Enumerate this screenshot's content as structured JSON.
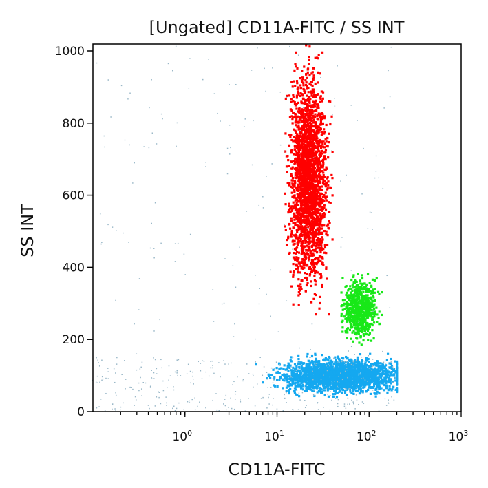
{
  "chart_data": {
    "type": "scatter",
    "title": "[Ungated] CD11A-FITC / SS INT",
    "xlabel": "CD11A-FITC",
    "ylabel": "SS INT",
    "xscale": "log",
    "xlim": [
      0.1,
      1000
    ],
    "ylim": [
      0,
      1020
    ],
    "xticks": [
      {
        "value": 1,
        "base": "10",
        "exp": "0"
      },
      {
        "value": 10,
        "base": "10",
        "exp": "1"
      },
      {
        "value": 100,
        "base": "10",
        "exp": "2"
      },
      {
        "value": 1000,
        "base": "10",
        "exp": "3"
      }
    ],
    "yticks": [
      0,
      200,
      400,
      600,
      800,
      1000
    ],
    "grid": false,
    "legend": "none",
    "populations": [
      {
        "color": "#ff0000",
        "x_center": 22,
        "x_range": [
          12,
          40
        ],
        "y_range": [
          270,
          1020
        ],
        "relative_density": "very high"
      },
      {
        "color": "#18e818",
        "x_center": 80,
        "x_range": [
          50,
          150
        ],
        "y_range": [
          180,
          390
        ],
        "relative_density": "medium"
      },
      {
        "color": "#15a8f0",
        "x_center": 50,
        "x_range": [
          4,
          200
        ],
        "y_range": [
          40,
          160
        ],
        "relative_density": "high"
      },
      {
        "color": "#9ab8c8",
        "x_center": 1,
        "x_range": [
          0.1,
          200
        ],
        "y_range": [
          0,
          1020
        ],
        "relative_density": "sparse debris"
      }
    ]
  }
}
